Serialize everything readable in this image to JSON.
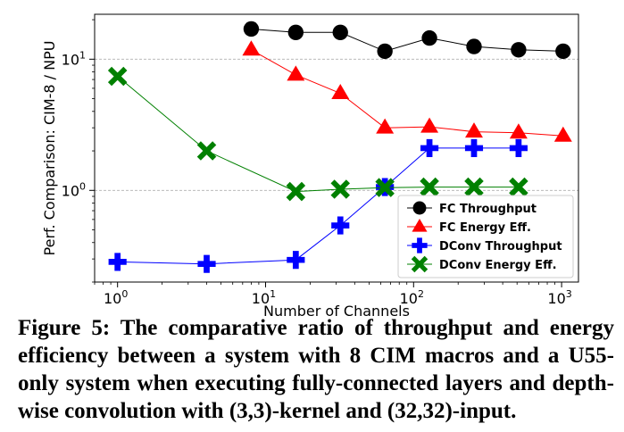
{
  "chart_data": {
    "type": "line",
    "xscale": "log",
    "yscale": "log",
    "xlabel": "Number of Channels",
    "ylabel": "Perf. Comparison: CIM-8 / NPU",
    "xlim": [
      0.7,
      1300
    ],
    "ylim": [
      0.2,
      22
    ],
    "x_ticks": [
      {
        "value": 1,
        "base": "10",
        "exp": "0"
      },
      {
        "value": 10,
        "base": "10",
        "exp": "1"
      },
      {
        "value": 100,
        "base": "10",
        "exp": "2"
      },
      {
        "value": 1000,
        "base": "10",
        "exp": "3"
      }
    ],
    "y_ticks": [
      {
        "value": 1,
        "base": "10",
        "exp": "0"
      },
      {
        "value": 10,
        "base": "10",
        "exp": "1"
      }
    ],
    "grid": "horizontal-dashed",
    "legend_position": "lower-right",
    "series": [
      {
        "name": "FC Throughput",
        "color": "#000000",
        "marker": "circle",
        "x": [
          8,
          16,
          32,
          64,
          128,
          256,
          512,
          1024
        ],
        "y": [
          17.0,
          16.0,
          16.0,
          11.5,
          14.5,
          12.5,
          11.8,
          11.5
        ]
      },
      {
        "name": "FC Energy Eff.",
        "color": "#ff0000",
        "marker": "triangle",
        "x": [
          8,
          16,
          32,
          64,
          128,
          256,
          512,
          1024
        ],
        "y": [
          11.8,
          7.6,
          5.5,
          3.0,
          3.05,
          2.8,
          2.75,
          2.6
        ]
      },
      {
        "name": "DConv Throughput",
        "color": "#0000ff",
        "marker": "plus",
        "x": [
          1,
          4,
          16,
          32,
          64,
          128,
          256,
          512
        ],
        "y": [
          0.285,
          0.275,
          0.295,
          0.54,
          1.06,
          2.1,
          2.1,
          2.1
        ]
      },
      {
        "name": "DConv Energy Eff.",
        "color": "#008000",
        "marker": "x",
        "x": [
          1,
          4,
          16,
          32,
          64,
          128,
          256,
          512
        ],
        "y": [
          7.4,
          2.0,
          0.98,
          1.02,
          1.05,
          1.06,
          1.06,
          1.06
        ]
      }
    ]
  },
  "caption": {
    "label": "Figure 5:",
    "text": "The comparative ratio of throughput and energy efficiency between a system with 8 CIM macros and a U55-only system when executing fully-connected layers and depth-wise convolution with (3,3)-kernel and (32,32)-input."
  }
}
